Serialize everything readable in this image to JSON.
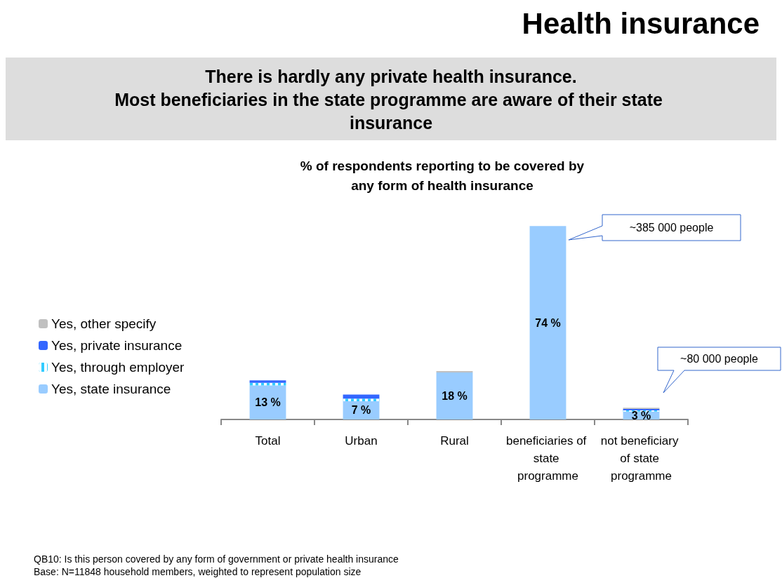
{
  "chart_data": {
    "type": "bar",
    "title": "Health insurance",
    "subtitle": "There is hardly any private health insurance.\nMost beneficiaries in the state programme are aware of their state insurance",
    "annotations": [
      "% of respondents reporting to be covered by\nany form of health insurance",
      "~385 000 people",
      "~80 000 people",
      "QB10: Is this person covered by any form of government or private health insurance",
      "Base: N=11848 household members, weighted to represent population size"
    ],
    "categories": [
      "Total",
      "Urban",
      "Rural",
      "beneficiaries of state programme",
      "not beneficiary of state programme"
    ],
    "stacked": true,
    "legend": "left",
    "grid": false,
    "series": [
      {
        "name": "Yes, state insurance",
        "color": "#99ccff",
        "values": [
          13,
          7,
          18,
          74,
          3
        ],
        "value_labels": [
          "13 %",
          "7 %",
          "18 %",
          "74 %",
          "3 %"
        ]
      },
      {
        "name": "Yes, through employer",
        "color": "#33ccff",
        "values": [
          1,
          1,
          0,
          0,
          0.5
        ]
      },
      {
        "name": "Yes, private insurance",
        "color": "#3366ff",
        "values": [
          1,
          1.5,
          0,
          0,
          0.5
        ]
      },
      {
        "name": "Yes, other specify",
        "color": "#c0c0c0",
        "values": [
          0,
          0,
          0.5,
          0,
          0.5
        ]
      }
    ]
  }
}
